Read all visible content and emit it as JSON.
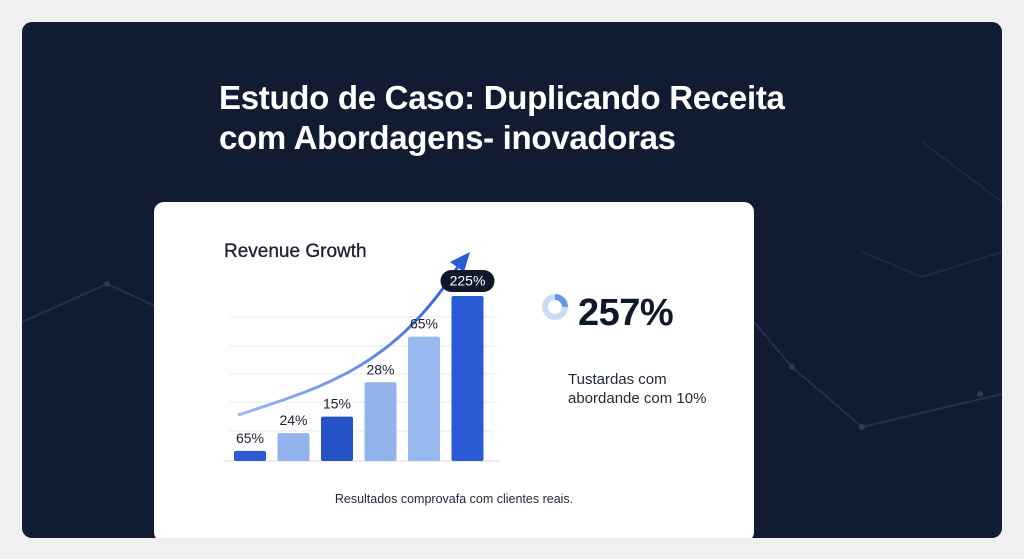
{
  "headline": {
    "line1": "Estudo de Caso: Duplicando Receita",
    "line2": "com Abordagens- inovadoras"
  },
  "chart_data": {
    "type": "bar",
    "title": "Revenue Growth",
    "categories": [
      "",
      "",
      "",
      "",
      "",
      ""
    ],
    "labels": [
      "65%",
      "24%",
      "15%",
      "28%",
      "65%",
      "225%"
    ],
    "values": [
      8,
      22,
      35,
      62,
      98,
      130
    ],
    "colors": [
      "#2d5bd1",
      "#93b3ee",
      "#2553c7",
      "#93b3ee",
      "#98b8f0",
      "#2a5ad4"
    ],
    "highlight_index": 5,
    "grid": true,
    "trend_arrow": true,
    "ylim": [
      0,
      130
    ]
  },
  "stat": {
    "value": "257%",
    "description": "Tustardas com abordande com 10%"
  },
  "caption": "Resultados comprovafa com clientes reais.",
  "theme": {
    "background": "#111c33",
    "accent": "#2a5ad4"
  }
}
